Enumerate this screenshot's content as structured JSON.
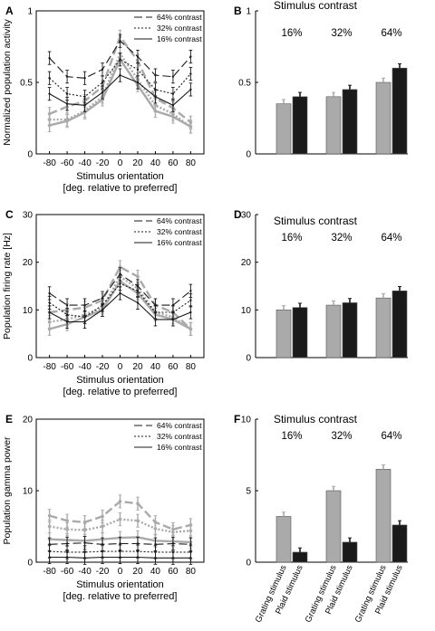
{
  "colors": {
    "grating": "#aaaaaa",
    "plaid": "#1a1a1a",
    "axis": "#000000"
  },
  "legend_entries": [
    "64% contrast",
    "32% contrast",
    "16% contrast"
  ],
  "chart_data": [
    {
      "panel": "A",
      "type": "line",
      "ylabel": "Normalized population activity",
      "xlabel": "Stimulus orientation",
      "xlabel2": "[deg. relative to preferred]",
      "xticks": [
        -80,
        -60,
        -40,
        -20,
        0,
        20,
        40,
        60,
        80
      ],
      "yticks": [
        0,
        0.5,
        1
      ],
      "ytick_labels": [
        "0",
        "0.5",
        "1"
      ],
      "ylim": [
        0,
        1
      ],
      "xlim": [
        -95,
        95
      ],
      "legend": "top-right",
      "series": [
        {
          "name": "64% contrast",
          "stimulus": "grating",
          "values": [
            0.28,
            0.33,
            0.37,
            0.47,
            0.82,
            0.65,
            0.39,
            0.32,
            0.22
          ]
        },
        {
          "name": "32% contrast",
          "stimulus": "grating",
          "values": [
            0.24,
            0.24,
            0.3,
            0.4,
            0.7,
            0.52,
            0.34,
            0.28,
            0.19
          ]
        },
        {
          "name": "16% contrast",
          "stimulus": "grating",
          "values": [
            0.2,
            0.23,
            0.29,
            0.38,
            0.66,
            0.48,
            0.3,
            0.26,
            0.19
          ]
        },
        {
          "name": "64% contrast",
          "stimulus": "plaid",
          "values": [
            0.67,
            0.54,
            0.53,
            0.59,
            0.79,
            0.68,
            0.55,
            0.54,
            0.68
          ]
        },
        {
          "name": "32% contrast",
          "stimulus": "plaid",
          "values": [
            0.53,
            0.42,
            0.4,
            0.5,
            0.66,
            0.59,
            0.45,
            0.42,
            0.56
          ]
        },
        {
          "name": "16% contrast",
          "stimulus": "plaid",
          "values": [
            0.42,
            0.35,
            0.34,
            0.43,
            0.55,
            0.5,
            0.4,
            0.34,
            0.45
          ]
        }
      ]
    },
    {
      "panel": "B",
      "type": "bar",
      "title": "Stimulus contrast",
      "group_labels": [
        "16%",
        "32%",
        "64%"
      ],
      "yticks": [
        0,
        0.5,
        1
      ],
      "ytick_labels": [
        "0",
        "0.5",
        "1"
      ],
      "ylim": [
        0,
        1
      ],
      "grating": [
        0.35,
        0.4,
        0.5
      ],
      "plaid": [
        0.4,
        0.45,
        0.6
      ]
    },
    {
      "panel": "C",
      "type": "line",
      "ylabel": "Population firing rate [Hz]",
      "xlabel": "Stimulus orientation",
      "xlabel2": "[deg. relative to preferred]",
      "xticks": [
        -80,
        -60,
        -40,
        -20,
        0,
        20,
        40,
        60,
        80
      ],
      "yticks": [
        0,
        10,
        20,
        30
      ],
      "ytick_labels": [
        "0",
        "10",
        "20",
        "30"
      ],
      "ylim": [
        0,
        30
      ],
      "xlim": [
        -95,
        95
      ],
      "legend": "top-right",
      "series": [
        {
          "name": "64% contrast",
          "stimulus": "grating",
          "values": [
            9.5,
            10.0,
            10.5,
            12.0,
            19.0,
            17.0,
            11.0,
            9.5,
            6.0
          ]
        },
        {
          "name": "32% contrast",
          "stimulus": "grating",
          "values": [
            7.5,
            8.0,
            9.0,
            10.5,
            17.0,
            14.5,
            9.5,
            8.5,
            6.0
          ]
        },
        {
          "name": "16% contrast",
          "stimulus": "grating",
          "values": [
            6.0,
            7.0,
            8.5,
            10.0,
            16.0,
            13.5,
            9.0,
            8.0,
            6.0
          ]
        },
        {
          "name": "64% contrast",
          "stimulus": "plaid",
          "values": [
            13.5,
            11.0,
            11.0,
            12.5,
            17.5,
            15.0,
            11.0,
            11.0,
            14.0
          ]
        },
        {
          "name": "32% contrast",
          "stimulus": "plaid",
          "values": [
            11.5,
            9.0,
            8.5,
            11.0,
            15.5,
            14.0,
            9.5,
            9.5,
            12.0
          ]
        },
        {
          "name": "16% contrast",
          "stimulus": "plaid",
          "values": [
            9.5,
            7.5,
            7.5,
            10.0,
            13.5,
            11.5,
            8.0,
            8.0,
            9.5
          ]
        }
      ]
    },
    {
      "panel": "D",
      "type": "bar",
      "title": "Stimulus contrast",
      "group_labels": [
        "16%",
        "32%",
        "64%"
      ],
      "yticks": [
        0,
        10,
        20,
        30
      ],
      "ytick_labels": [
        "0",
        "10",
        "20",
        "30"
      ],
      "ylim": [
        0,
        30
      ],
      "grating": [
        10.0,
        11.0,
        12.5
      ],
      "plaid": [
        10.5,
        11.5,
        14.0
      ]
    },
    {
      "panel": "E",
      "type": "line",
      "ylabel": "Population gamma power",
      "xlabel": "Stimulus orientation",
      "xlabel2": "[deg. relative to preferred]",
      "xticks": [
        -80,
        -60,
        -40,
        -20,
        0,
        20,
        40,
        60,
        80
      ],
      "yticks": [
        0,
        10,
        20
      ],
      "ytick_labels": [
        "0",
        "10",
        "20"
      ],
      "ylim": [
        0,
        20
      ],
      "xlim": [
        -95,
        95
      ],
      "legend": "top-right",
      "series": [
        {
          "name": "64% contrast",
          "stimulus": "grating",
          "values": [
            6.5,
            5.8,
            5.6,
            6.4,
            8.5,
            8.2,
            5.6,
            4.6,
            5.2
          ]
        },
        {
          "name": "32% contrast",
          "stimulus": "grating",
          "values": [
            5.0,
            4.6,
            4.5,
            5.0,
            6.0,
            5.8,
            4.7,
            4.2,
            4.4
          ]
        },
        {
          "name": "16% contrast",
          "stimulus": "grating",
          "values": [
            3.2,
            3.1,
            3.0,
            3.2,
            3.4,
            3.5,
            3.0,
            2.9,
            2.8
          ]
        },
        {
          "name": "64% contrast",
          "stimulus": "plaid",
          "values": [
            2.5,
            2.6,
            2.7,
            2.5,
            2.6,
            2.6,
            2.5,
            2.6,
            2.5
          ]
        },
        {
          "name": "32% contrast",
          "stimulus": "plaid",
          "values": [
            1.5,
            1.4,
            1.4,
            1.5,
            1.5,
            1.5,
            1.4,
            1.4,
            1.4
          ]
        },
        {
          "name": "16% contrast",
          "stimulus": "plaid",
          "values": [
            0.7,
            0.7,
            0.6,
            0.7,
            0.7,
            0.7,
            0.6,
            0.6,
            0.6
          ]
        }
      ]
    },
    {
      "panel": "F",
      "type": "bar",
      "title": "Stimulus contrast",
      "group_labels": [
        "16%",
        "32%",
        "64%"
      ],
      "yticks": [
        0,
        5,
        10
      ],
      "ytick_labels": [
        "0",
        "5",
        "10"
      ],
      "ylim": [
        0,
        10
      ],
      "grating": [
        3.2,
        5.0,
        6.5
      ],
      "plaid": [
        0.7,
        1.4,
        2.6
      ],
      "bar_labels": [
        "Grating stimulus",
        "Plaid stimulus"
      ]
    }
  ]
}
